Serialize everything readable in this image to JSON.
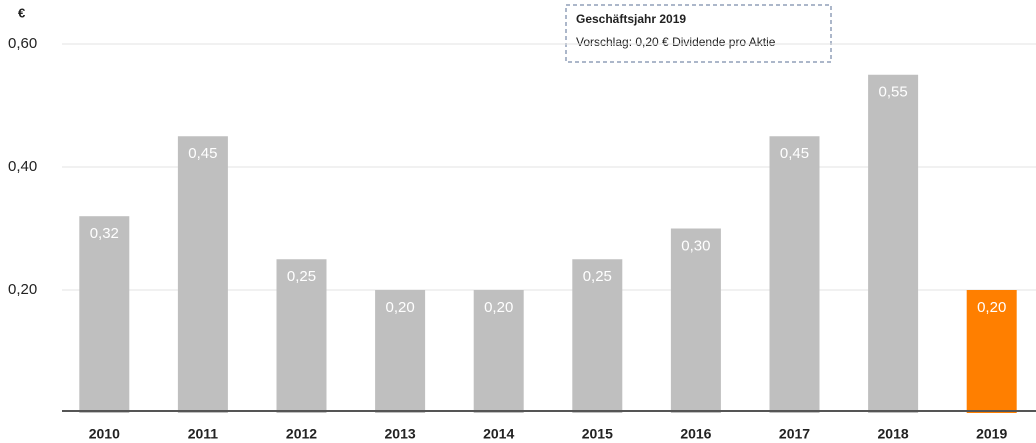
{
  "chart_data": {
    "type": "bar",
    "unit": "€",
    "annotation": {
      "title": "Geschäftsjahr 2019",
      "text": "Vorschlag: 0,20 € Dividende pro Aktie"
    },
    "categories": [
      "2010",
      "2011",
      "2012",
      "2013",
      "2014",
      "2015",
      "2016",
      "2017",
      "2018",
      "2019"
    ],
    "values": [
      0.32,
      0.45,
      0.25,
      0.2,
      0.2,
      0.25,
      0.3,
      0.45,
      0.55,
      0.2
    ],
    "value_labels": [
      "0,32",
      "0,45",
      "0,25",
      "0,20",
      "0,20",
      "0,25",
      "0,30",
      "0,45",
      "0,55",
      "0,20"
    ],
    "colors": [
      "#bfbfbf",
      "#bfbfbf",
      "#bfbfbf",
      "#bfbfbf",
      "#bfbfbf",
      "#bfbfbf",
      "#bfbfbf",
      "#bfbfbf",
      "#bfbfbf",
      "#ff7f00"
    ],
    "ylim": [
      0,
      0.6
    ],
    "yticks": [
      {
        "value": 0.2,
        "label": "0,20"
      },
      {
        "value": 0.4,
        "label": "0,40"
      },
      {
        "value": 0.6,
        "label": "0,60"
      }
    ],
    "grid": true
  }
}
